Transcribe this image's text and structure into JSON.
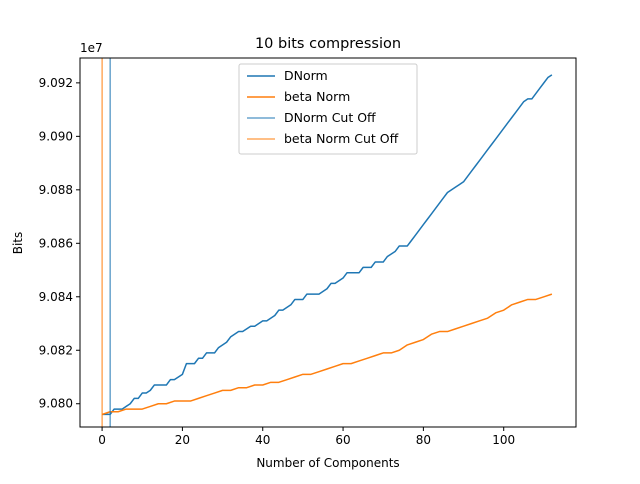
{
  "chart_data": {
    "type": "line",
    "title": "10 bits compression",
    "xlabel": "Number of Components",
    "ylabel": "Bits",
    "offset_label": "1e7",
    "xlim": [
      -5.5,
      118
    ],
    "ylim": [
      9.07913,
      9.09293
    ],
    "x_ticks": [
      0,
      20,
      40,
      60,
      80,
      100
    ],
    "x_tick_labels": [
      "0",
      "20",
      "40",
      "60",
      "80",
      "100"
    ],
    "y_ticks": [
      9.08,
      9.082,
      9.084,
      9.086,
      9.088,
      9.09,
      9.092
    ],
    "y_tick_labels": [
      "9.080",
      "9.082",
      "9.084",
      "9.086",
      "9.088",
      "9.090",
      "9.092"
    ],
    "grid": false,
    "legend_position": "top-center",
    "series": [
      {
        "name": "DNorm",
        "color": "#1f77b4",
        "x": [
          0,
          2,
          3,
          5,
          6,
          7,
          8,
          9,
          10,
          11,
          12,
          13,
          16,
          17,
          18,
          20,
          21,
          23,
          24,
          25,
          26,
          28,
          29,
          31,
          32,
          34,
          35,
          37,
          38,
          40,
          41,
          43,
          44,
          45,
          47,
          48,
          50,
          51,
          53,
          54,
          56,
          57,
          58,
          60,
          61,
          62,
          64,
          65,
          67,
          68,
          70,
          71,
          73,
          74,
          76,
          77,
          78,
          79,
          80,
          81,
          82,
          83,
          84,
          85,
          86,
          88,
          89,
          90,
          91,
          92,
          93,
          94,
          95,
          96,
          97,
          98,
          99,
          100,
          101,
          102,
          103,
          104,
          105,
          106,
          107,
          108,
          109,
          110,
          111,
          112
        ],
        "values": [
          9.0796,
          9.0796,
          9.0798,
          9.0798,
          9.0799,
          9.08,
          9.0802,
          9.0802,
          9.0804,
          9.0804,
          9.0805,
          9.0807,
          9.0807,
          9.0809,
          9.0809,
          9.0811,
          9.0815,
          9.0815,
          9.0817,
          9.0817,
          9.0819,
          9.0819,
          9.0821,
          9.0823,
          9.0825,
          9.0827,
          9.0827,
          9.0829,
          9.0829,
          9.0831,
          9.0831,
          9.0833,
          9.0835,
          9.0835,
          9.0837,
          9.0839,
          9.0839,
          9.0841,
          9.0841,
          9.0841,
          9.0843,
          9.0845,
          9.0845,
          9.0847,
          9.0849,
          9.0849,
          9.0849,
          9.0851,
          9.0851,
          9.0853,
          9.0853,
          9.0855,
          9.0857,
          9.0859,
          9.0859,
          9.0861,
          9.0863,
          9.0865,
          9.0867,
          9.0869,
          9.0871,
          9.0873,
          9.0875,
          9.0877,
          9.0879,
          9.0881,
          9.0882,
          9.0883,
          9.0885,
          9.0887,
          9.0889,
          9.0891,
          9.0893,
          9.0895,
          9.0897,
          9.0899,
          9.0901,
          9.0903,
          9.0905,
          9.0907,
          9.0909,
          9.0911,
          9.0913,
          9.0914,
          9.0914,
          9.0916,
          9.0918,
          9.092,
          9.0922,
          9.0923
        ]
      },
      {
        "name": "beta Norm",
        "color": "#ff7f0e",
        "x": [
          0,
          2,
          4,
          6,
          8,
          10,
          12,
          14,
          16,
          18,
          20,
          22,
          24,
          26,
          28,
          30,
          32,
          34,
          36,
          38,
          40,
          42,
          44,
          46,
          48,
          50,
          52,
          54,
          56,
          58,
          60,
          62,
          64,
          66,
          68,
          70,
          72,
          74,
          76,
          78,
          80,
          82,
          84,
          86,
          88,
          90,
          92,
          94,
          96,
          98,
          100,
          102,
          104,
          106,
          108,
          110,
          112
        ],
        "values": [
          9.0796,
          9.0797,
          9.0797,
          9.0798,
          9.0798,
          9.0798,
          9.0799,
          9.08,
          9.08,
          9.0801,
          9.0801,
          9.0801,
          9.0802,
          9.0803,
          9.0804,
          9.0805,
          9.0805,
          9.0806,
          9.0806,
          9.0807,
          9.0807,
          9.0808,
          9.0808,
          9.0809,
          9.081,
          9.0811,
          9.0811,
          9.0812,
          9.0813,
          9.0814,
          9.0815,
          9.0815,
          9.0816,
          9.0817,
          9.0818,
          9.0819,
          9.0819,
          9.082,
          9.0822,
          9.0823,
          9.0824,
          9.0826,
          9.0827,
          9.0827,
          9.0828,
          9.0829,
          9.083,
          9.0831,
          9.0832,
          9.0834,
          9.0835,
          9.0837,
          9.0838,
          9.0839,
          9.0839,
          9.084,
          9.0841
        ]
      }
    ],
    "vlines": [
      {
        "name": "DNorm Cut Off",
        "color": "#1f77b4",
        "x": 2
      },
      {
        "name": "beta Norm Cut Off",
        "color": "#ff7f0e",
        "x": 0
      }
    ]
  }
}
